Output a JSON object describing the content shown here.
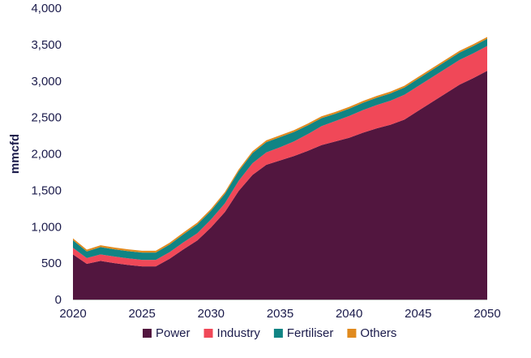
{
  "chart_data": {
    "type": "area",
    "stacked": true,
    "title": "",
    "xlabel": "",
    "ylabel": "mmcfd",
    "xlim": [
      2020,
      2050
    ],
    "ylim": [
      0,
      4000
    ],
    "x_ticks": [
      2020,
      2025,
      2030,
      2035,
      2040,
      2045,
      2050
    ],
    "x_tick_labels": [
      "2020",
      "2025",
      "2030",
      "2035",
      "2040",
      "2045",
      "2050"
    ],
    "y_ticks": [
      0,
      500,
      1000,
      1500,
      2000,
      2500,
      3000,
      3500,
      4000
    ],
    "y_tick_labels": [
      "0",
      "500",
      "1,000",
      "1,500",
      "2,000",
      "2,500",
      "3,000",
      "3,500",
      "4,000"
    ],
    "grid": false,
    "legend_position": "bottom",
    "x": [
      2020,
      2021,
      2022,
      2023,
      2024,
      2025,
      2026,
      2027,
      2028,
      2029,
      2030,
      2031,
      2032,
      2033,
      2034,
      2035,
      2036,
      2037,
      2038,
      2039,
      2040,
      2041,
      2042,
      2043,
      2044,
      2045,
      2046,
      2047,
      2048,
      2049,
      2050
    ],
    "series": [
      {
        "name": "Power",
        "color": "#52163f",
        "values": [
          620,
          490,
          530,
          500,
          475,
          455,
          455,
          560,
          690,
          810,
          990,
          1200,
          1490,
          1710,
          1850,
          1910,
          1970,
          2040,
          2120,
          2170,
          2220,
          2290,
          2350,
          2400,
          2470,
          2590,
          2710,
          2830,
          2950,
          3040,
          3140
        ]
      },
      {
        "name": "Industry",
        "color": "#f04858",
        "values": [
          90,
          80,
          90,
          90,
          90,
          90,
          90,
          90,
          95,
          100,
          110,
          120,
          140,
          160,
          170,
          180,
          200,
          230,
          260,
          280,
          300,
          310,
          320,
          330,
          340,
          340,
          340,
          340,
          340,
          340,
          340
        ]
      },
      {
        "name": "Fertiliser",
        "color": "#108484",
        "values": [
          105,
          90,
          100,
          100,
          100,
          100,
          100,
          105,
          110,
          120,
          120,
          130,
          130,
          140,
          140,
          140,
          130,
          120,
          110,
          100,
          100,
          100,
          100,
          100,
          100,
          100,
          100,
          100,
          100,
          100,
          100
        ]
      },
      {
        "name": "Others",
        "color": "#e08a1e",
        "values": [
          25,
          25,
          25,
          25,
          25,
          25,
          25,
          25,
          25,
          25,
          25,
          25,
          25,
          25,
          25,
          25,
          25,
          25,
          25,
          25,
          25,
          25,
          25,
          25,
          25,
          25,
          25,
          25,
          25,
          25,
          25
        ]
      }
    ]
  }
}
